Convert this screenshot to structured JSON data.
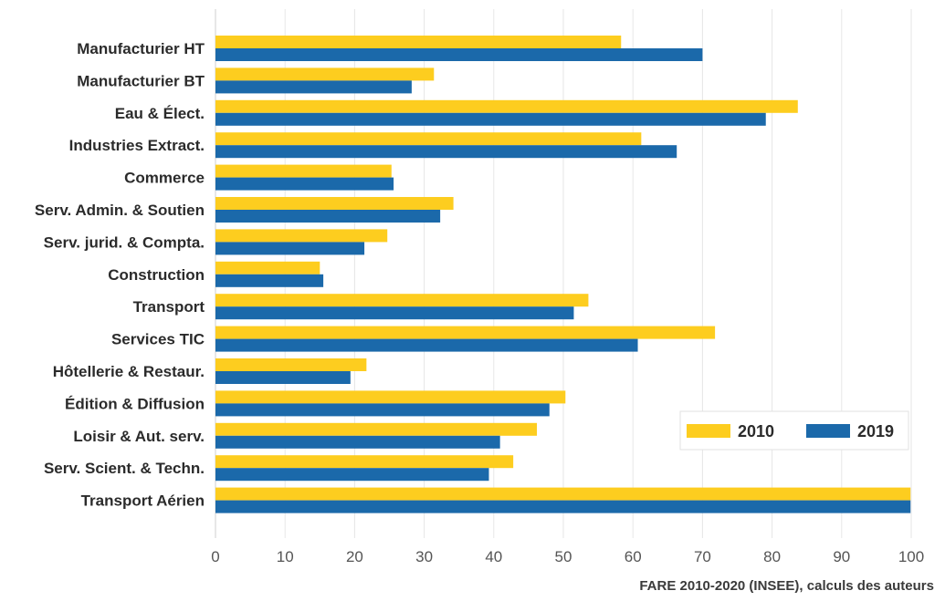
{
  "chart_data": {
    "type": "bar",
    "orientation": "horizontal",
    "categories": [
      "Manufacturier HT",
      "Manufacturier BT",
      "Eau & Élect.",
      "Industries Extract.",
      "Commerce",
      "Serv. Admin. & Soutien",
      "Serv. jurid. & Compta.",
      "Construction",
      "Transport",
      "Services TIC",
      "Hôtellerie & Restaur.",
      "Édition & Diffusion",
      "Loisir & Aut. serv.",
      "Serv. Scient. & Techn.",
      "Transport Aérien"
    ],
    "series": [
      {
        "name": "2010",
        "color": "#fdcd1f",
        "values": [
          58.3,
          31.4,
          83.7,
          61.2,
          25.3,
          34.2,
          24.7,
          15.0,
          53.6,
          71.8,
          21.7,
          50.3,
          46.2,
          42.8,
          99.9
        ]
      },
      {
        "name": "2019",
        "color": "#1b69aa",
        "values": [
          70.0,
          28.2,
          79.1,
          66.3,
          25.6,
          32.3,
          21.4,
          15.5,
          51.5,
          60.7,
          19.4,
          48.0,
          40.9,
          39.3,
          99.9
        ]
      }
    ],
    "xticks": [
      0,
      10,
      20,
      30,
      40,
      50,
      60,
      70,
      80,
      90,
      100
    ],
    "xlim": [
      0,
      100
    ],
    "grid": "vertical",
    "legend": "right"
  },
  "source": "FARE 2010-2020 (INSEE), calculs des auteurs"
}
